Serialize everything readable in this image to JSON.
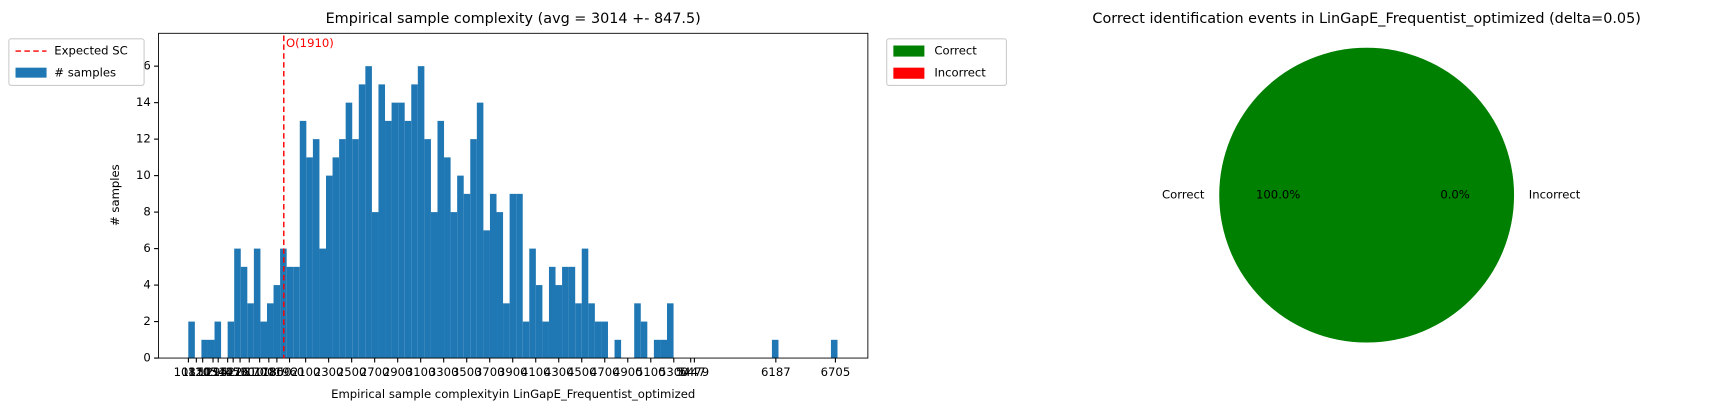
{
  "chart_data": [
    {
      "type": "histogram",
      "title": "Empirical sample complexity (avg = 3014 +- 847.5)",
      "xlabel": "Empirical sample complexityin LinGapE_Frequentist_optimized",
      "ylabel": "# samples",
      "bins": [
        1080,
        1137,
        1194,
        1251,
        1308,
        1365,
        1422,
        1479,
        1536,
        1593,
        1650,
        1707,
        1764,
        1821,
        1878,
        1935,
        1992,
        2049,
        2106,
        2163,
        2220,
        2277,
        2334,
        2391,
        2448,
        2505,
        2562,
        2619,
        2676,
        2733,
        2790,
        2847,
        2904,
        2961,
        3018,
        3075,
        3132,
        3189,
        3246,
        3303,
        3360,
        3417,
        3474,
        3531,
        3588,
        3645,
        3702,
        3759,
        3816,
        3873,
        3930,
        3987,
        4044,
        4101,
        4158,
        4215,
        4272,
        4329,
        4386,
        4443,
        4500,
        4557,
        4614,
        4671,
        4728,
        4785,
        4842,
        4899,
        4956,
        5013,
        5070,
        5127,
        5184,
        5241,
        5298,
        5355,
        5412,
        5469,
        5526,
        5583,
        5640,
        5697,
        5754,
        5811,
        5868,
        5925,
        5982,
        6039,
        6096,
        6153,
        6210,
        6267,
        6324,
        6381,
        6438,
        6495,
        6552,
        6609,
        6666,
        6723,
        6780
      ],
      "series": [
        {
          "name": "# samples",
          "color": "#1f77b4",
          "values": [
            2,
            0,
            1,
            1,
            2,
            0,
            2,
            6,
            5,
            3,
            6,
            2,
            3,
            4,
            6,
            5,
            5,
            13,
            11,
            12,
            6,
            10,
            11,
            12,
            14,
            12,
            15,
            16,
            8,
            15,
            13,
            14,
            14,
            13,
            15,
            16,
            12,
            8,
            13,
            11,
            8,
            10,
            9,
            12,
            14,
            7,
            9,
            8,
            3,
            9,
            9,
            2,
            6,
            4,
            2,
            5,
            4,
            5,
            5,
            3,
            6,
            3,
            2,
            2,
            0,
            1,
            0,
            0,
            3,
            2,
            0,
            1,
            1,
            3,
            0,
            0,
            0,
            0,
            0,
            0,
            0,
            0,
            0,
            0,
            0,
            0,
            0,
            0,
            0,
            1,
            0,
            0,
            0,
            0,
            0,
            0,
            0,
            0,
            1,
            0
          ]
        }
      ],
      "vline": {
        "name": "Expected SC",
        "value": 1910,
        "label": "O(1910)",
        "color": "#ff0000"
      },
      "xlim": [
        821,
        6987
      ],
      "ylim": [
        0,
        17.8
      ],
      "xticks": [
        1081,
        1150,
        1205,
        1295,
        1340,
        1422,
        1470,
        1530,
        1610,
        1700,
        1780,
        1850,
        1960,
        2100,
        2300,
        2500,
        2700,
        2900,
        3100,
        3300,
        3500,
        3700,
        3900,
        4100,
        4300,
        4500,
        4700,
        4900,
        5100,
        5300,
        5447,
        5479,
        6187,
        6705
      ],
      "yticks": [
        0,
        2,
        4,
        6,
        8,
        10,
        12,
        14,
        16
      ],
      "legend": "upper left outside"
    },
    {
      "type": "pie",
      "title": "Correct identification events in LinGapE_Frequentist_optimized (delta=0.05)",
      "categories": [
        "Correct",
        "Incorrect"
      ],
      "values": [
        100,
        0
      ],
      "value_labels": [
        "100.0%",
        "0.0%"
      ],
      "colors": [
        "#008000",
        "#ff0000"
      ],
      "legend": "upper left outside"
    }
  ]
}
